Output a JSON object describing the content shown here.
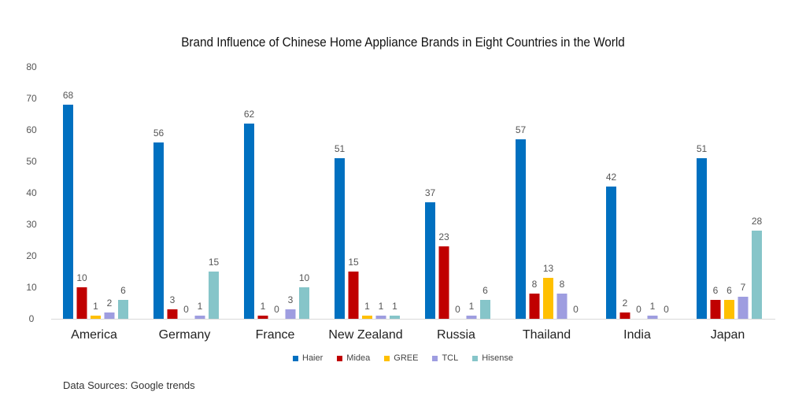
{
  "chart_data": {
    "type": "bar",
    "title": "Brand Influence of Chinese Home Appliance Brands in Eight Countries in the World",
    "categories": [
      "America",
      "Germany",
      "France",
      "New Zealand",
      "Russia",
      "Thailand",
      "India",
      "Japan"
    ],
    "series": [
      {
        "name": "Haier",
        "color": "#0070c0",
        "values": [
          68,
          56,
          62,
          51,
          37,
          57,
          42,
          51
        ]
      },
      {
        "name": "Midea",
        "color": "#c00000",
        "values": [
          10,
          3,
          1,
          15,
          23,
          8,
          2,
          6
        ]
      },
      {
        "name": "GREE",
        "color": "#ffc000",
        "values": [
          1,
          0,
          0,
          1,
          0,
          13,
          0,
          6
        ]
      },
      {
        "name": "TCL",
        "color": "#9e9de0",
        "values": [
          2,
          1,
          3,
          1,
          1,
          8,
          1,
          7
        ]
      },
      {
        "name": "Hisense",
        "color": "#86c5c9",
        "values": [
          6,
          15,
          10,
          1,
          6,
          0,
          0,
          28
        ]
      }
    ],
    "ylim": [
      0,
      80
    ],
    "yticks": [
      0,
      10,
      20,
      30,
      40,
      50,
      60,
      70,
      80
    ],
    "legend": "bottom",
    "grid": false
  },
  "source": "Data Sources:   Google trends"
}
